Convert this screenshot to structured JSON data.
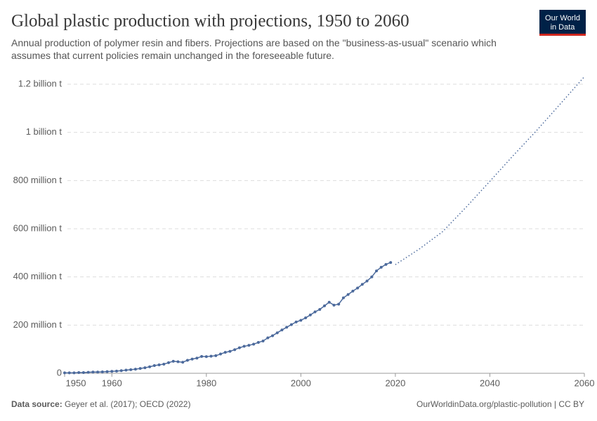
{
  "chart_data": {
    "type": "line",
    "title": "Global plastic production with projections, 1950 to 2060",
    "subtitle": "Annual production of polymer resin and fibers. Projections are based on the \"business-as-usual\" scenario which assumes that current policies remain unchanged in the foreseeable future.",
    "logo": [
      "Our World",
      "in Data"
    ],
    "source_label": "Data source:",
    "source": "Geyer et al. (2017); OECD (2022)",
    "credit": "OurWorldinData.org/plastic-pollution | CC BY",
    "xlim": [
      1950,
      2060
    ],
    "xticks": [
      1950,
      1960,
      1980,
      2000,
      2020,
      2040,
      2060
    ],
    "ylim": [
      0,
      1200000000
    ],
    "yticks": [
      0,
      {
        "value": 200000000,
        "label": "200 million t"
      },
      {
        "value": 400000000,
        "label": "400 million t"
      },
      {
        "value": 600000000,
        "label": "600 million t"
      },
      {
        "value": 800000000,
        "label": "800 million t"
      },
      {
        "value": 1000000000,
        "label": "1 billion t"
      },
      {
        "value": 1200000000,
        "label": "1.2 billion t"
      }
    ],
    "grid": true,
    "series": [
      {
        "color": "#4c6a9c",
        "style": "solid-dots",
        "x": [
          1950,
          1951,
          1952,
          1953,
          1954,
          1955,
          1956,
          1957,
          1958,
          1959,
          1960,
          1961,
          1962,
          1963,
          1964,
          1965,
          1966,
          1967,
          1968,
          1969,
          1970,
          1971,
          1972,
          1973,
          1974,
          1975,
          1976,
          1977,
          1978,
          1979,
          1980,
          1981,
          1982,
          1983,
          1984,
          1985,
          1986,
          1987,
          1988,
          1989,
          1990,
          1991,
          1992,
          1993,
          1994,
          1995,
          1996,
          1997,
          1998,
          1999,
          2000,
          2001,
          2002,
          2003,
          2004,
          2005,
          2006,
          2007,
          2008,
          2009,
          2010,
          2011,
          2012,
          2013,
          2014,
          2015,
          2016,
          2017,
          2018,
          2019
        ],
        "values": [
          2000000,
          2000000,
          2000000,
          3000000,
          3000000,
          4000000,
          5000000,
          5000000,
          6000000,
          7000000,
          8000000,
          9000000,
          11000000,
          13000000,
          15000000,
          17000000,
          20000000,
          23000000,
          27000000,
          32000000,
          35000000,
          38000000,
          44000000,
          50000000,
          48000000,
          46000000,
          54000000,
          59000000,
          63000000,
          70000000,
          69000000,
          71000000,
          73000000,
          80000000,
          87000000,
          91000000,
          98000000,
          106000000,
          112000000,
          116000000,
          121000000,
          128000000,
          134000000,
          147000000,
          156000000,
          168000000,
          180000000,
          191000000,
          202000000,
          213000000,
          220000000,
          230000000,
          242000000,
          255000000,
          265000000,
          280000000,
          295000000,
          283000000,
          287000000,
          313000000,
          327000000,
          341000000,
          354000000,
          369000000,
          383000000,
          400000000,
          425000000,
          440000000,
          452000000,
          460000000
        ]
      },
      {
        "color": "#4c6a9c",
        "style": "dotted",
        "x": [
          2020,
          2025,
          2030,
          2035,
          2040,
          2045,
          2050,
          2055,
          2060
        ],
        "values": [
          451000000,
          515000000,
          588000000,
          690000000,
          797000000,
          905000000,
          1010000000,
          1120000000,
          1231000000
        ]
      }
    ]
  }
}
